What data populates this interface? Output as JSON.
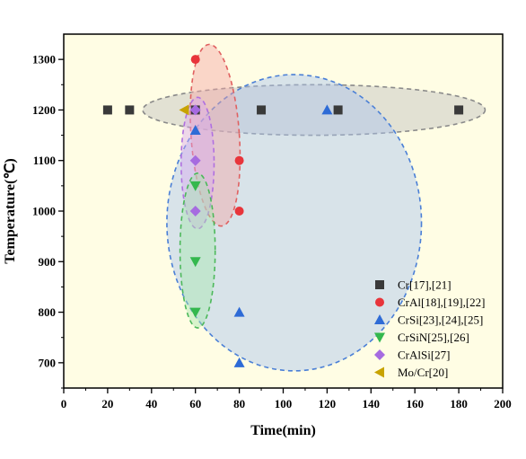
{
  "chart_data": {
    "type": "scatter",
    "title": "",
    "xlabel": "Time(min)",
    "ylabel": "Temperature(℃)",
    "xlim": [
      0,
      200
    ],
    "ylim": [
      650,
      1350
    ],
    "xticks": [
      0,
      20,
      40,
      60,
      80,
      100,
      120,
      140,
      160,
      180,
      200
    ],
    "yticks": [
      700,
      800,
      900,
      1000,
      1100,
      1200,
      1300
    ],
    "xtick_labels": [
      "0",
      "20",
      "40",
      "60",
      "80",
      "100",
      "120",
      "140",
      "160",
      "180",
      "200"
    ],
    "ytick_labels": [
      "700",
      "800",
      "900",
      "1000",
      "1100",
      "1200",
      "1300"
    ],
    "grid": false,
    "legend_position": "bottom-right",
    "background_color": "#FFFDE4",
    "series": [
      {
        "name": "Cr[17],[21]",
        "marker": "square",
        "color": "#3A3A3A",
        "points": [
          [
            20,
            1200
          ],
          [
            30,
            1200
          ],
          [
            60,
            1200
          ],
          [
            90,
            1200
          ],
          [
            125,
            1200
          ],
          [
            180,
            1200
          ]
        ]
      },
      {
        "name": "CrAl[18],[19],[22]",
        "marker": "circle",
        "color": "#E8353B",
        "points": [
          [
            60,
            1300
          ],
          [
            80,
            1100
          ],
          [
            80,
            1000
          ]
        ]
      },
      {
        "name": "CrSi[23],[24],[25]",
        "marker": "triangle-up",
        "color": "#2E6BD6",
        "points": [
          [
            60,
            1160
          ],
          [
            120,
            1200
          ],
          [
            80,
            800
          ],
          [
            80,
            700
          ]
        ]
      },
      {
        "name": "CrSiN[25],[26]",
        "marker": "triangle-down",
        "color": "#34B84E",
        "points": [
          [
            60,
            1050
          ],
          [
            60,
            900
          ],
          [
            60,
            800
          ]
        ]
      },
      {
        "name": "CrAlSi[27]",
        "marker": "diamond",
        "color": "#A66BE0",
        "points": [
          [
            60,
            1200
          ],
          [
            60,
            1100
          ],
          [
            60,
            1000
          ]
        ]
      },
      {
        "name": "Mo/Cr[20]",
        "marker": "triangle-left",
        "color": "#C8A300",
        "points": [
          [
            55,
            1200
          ]
        ]
      }
    ],
    "ellipses": [
      {
        "group": "Cr",
        "cx": 114,
        "cy": 1200,
        "rx": 78,
        "ry": 50,
        "angle": 0,
        "fill": "#BFBFBF",
        "stroke": "#8A8A8A"
      },
      {
        "group": "CrSi",
        "cx": 105,
        "cy": 977,
        "rx": 58,
        "ry": 293,
        "angle": 0,
        "fill": "#A9C4F0",
        "stroke": "#4A7FD6"
      },
      {
        "group": "CrAl",
        "cx": 69,
        "cy": 1150,
        "rx": 11,
        "ry": 180,
        "angle": -4,
        "fill": "#F4A6A6",
        "stroke": "#E06060"
      },
      {
        "group": "CrAlSi",
        "cx": 61,
        "cy": 1095,
        "rx": 7.5,
        "ry": 130,
        "angle": 0,
        "fill": "#D9A8F0",
        "stroke": "#B070E0"
      },
      {
        "group": "CrSiN",
        "cx": 61,
        "cy": 922,
        "rx": 8,
        "ry": 153,
        "angle": 0,
        "fill": "#A8E6B0",
        "stroke": "#4CB85A"
      }
    ]
  }
}
